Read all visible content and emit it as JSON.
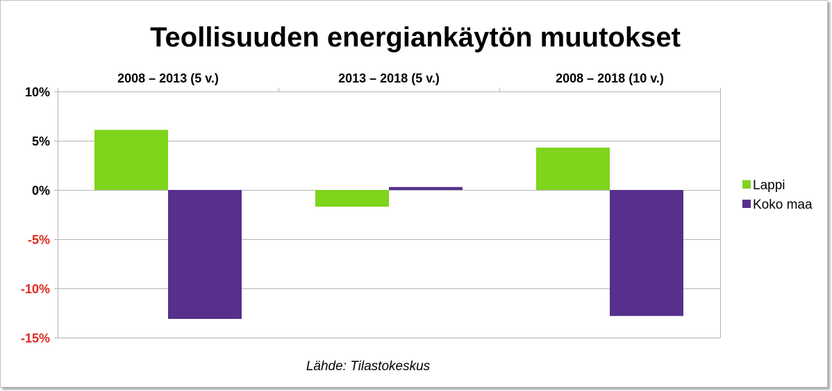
{
  "chart_data": {
    "type": "bar",
    "title": "Teollisuuden energiankäytön muutokset",
    "categories": [
      "2008 – 2013 (5 v.)",
      "2013 – 2018 (5 v.)",
      "2008 – 2018 (10 v.)"
    ],
    "series": [
      {
        "name": "Lappi",
        "color": "#7fd41c",
        "values": [
          6.1,
          -1.7,
          4.3
        ]
      },
      {
        "name": "Koko maa",
        "color": "#56308c",
        "values": [
          -13.1,
          0.3,
          -12.8
        ]
      }
    ],
    "ylim": [
      -15,
      10
    ],
    "yticks": [
      10,
      5,
      0,
      -5,
      -10,
      -15
    ],
    "ytick_labels": [
      "10%",
      "5%",
      "0%",
      "-5%",
      "-10%",
      "-15%"
    ],
    "negative_tick_color": "#e0281e",
    "category_axis_position": "top",
    "grid": true,
    "legend_position": "right",
    "source": "Lähde: Tilastokeskus"
  }
}
